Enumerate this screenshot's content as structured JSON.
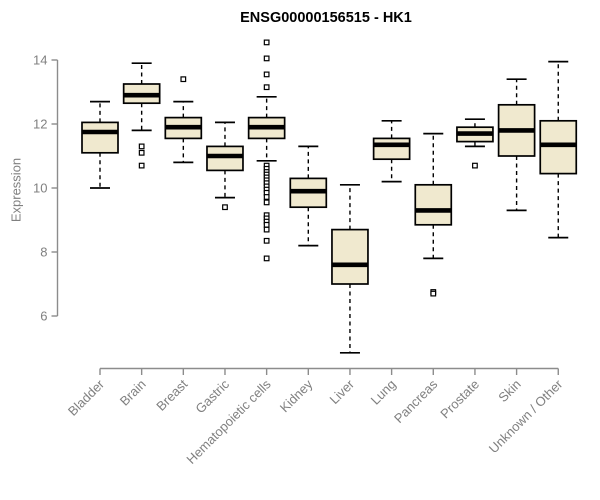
{
  "title": "ENSG00000156515 - HK1",
  "chart_data": {
    "type": "boxplot",
    "title": "ENSG00000156515 - HK1",
    "ylabel": "Expression",
    "xlabel": "",
    "yticks": [
      6,
      8,
      10,
      12,
      14
    ],
    "ylim": [
      4.3,
      14.8
    ],
    "grid": false,
    "legend": false,
    "categories": [
      "Bladder",
      "Brain",
      "Breast",
      "Gastric",
      "Hematopoietic cells",
      "Kidney",
      "Liver",
      "Lung",
      "Pancreas",
      "Prostate",
      "Skin",
      "Unknown / Other"
    ],
    "boxes": [
      {
        "category": "Bladder",
        "whisker_low": 10.0,
        "q1": 11.1,
        "median": 11.75,
        "q3": 12.05,
        "whisker_high": 12.7,
        "outliers": []
      },
      {
        "category": "Brain",
        "whisker_low": 11.8,
        "q1": 12.65,
        "median": 12.9,
        "q3": 13.25,
        "whisker_high": 13.9,
        "outliers": [
          11.3,
          11.1,
          10.7
        ]
      },
      {
        "category": "Breast",
        "whisker_low": 10.8,
        "q1": 11.55,
        "median": 11.9,
        "q3": 12.2,
        "whisker_high": 12.7,
        "outliers": [
          13.4
        ]
      },
      {
        "category": "Gastric",
        "whisker_low": 9.7,
        "q1": 10.55,
        "median": 11.0,
        "q3": 11.3,
        "whisker_high": 12.05,
        "outliers": [
          9.4
        ]
      },
      {
        "category": "Hematopoietic cells",
        "whisker_low": 10.85,
        "q1": 11.55,
        "median": 11.9,
        "q3": 12.2,
        "whisker_high": 12.85,
        "outliers": [
          14.55,
          14.05,
          13.55,
          13.15,
          10.7,
          10.6,
          10.5,
          10.42,
          10.33,
          10.24,
          10.15,
          10.05,
          9.95,
          9.85,
          9.72,
          9.55,
          9.15,
          9.05,
          8.95,
          8.85,
          8.7,
          8.35,
          7.8
        ]
      },
      {
        "category": "Kidney",
        "whisker_low": 8.2,
        "q1": 9.4,
        "median": 9.9,
        "q3": 10.3,
        "whisker_high": 11.3,
        "outliers": []
      },
      {
        "category": "Liver",
        "whisker_low": 4.85,
        "q1": 7.0,
        "median": 7.6,
        "q3": 8.7,
        "whisker_high": 10.1,
        "outliers": []
      },
      {
        "category": "Lung",
        "whisker_low": 10.2,
        "q1": 10.9,
        "median": 11.35,
        "q3": 11.55,
        "whisker_high": 12.1,
        "outliers": []
      },
      {
        "category": "Pancreas",
        "whisker_low": 7.8,
        "q1": 8.85,
        "median": 9.3,
        "q3": 10.1,
        "whisker_high": 11.7,
        "outliers": [
          6.75,
          6.7
        ]
      },
      {
        "category": "Prostate",
        "whisker_low": 11.3,
        "q1": 11.45,
        "median": 11.7,
        "q3": 11.9,
        "whisker_high": 12.15,
        "outliers": [
          10.7
        ]
      },
      {
        "category": "Skin",
        "whisker_low": 9.3,
        "q1": 11.0,
        "median": 11.8,
        "q3": 12.6,
        "whisker_high": 13.4,
        "outliers": []
      },
      {
        "category": "Unknown / Other",
        "whisker_low": 8.45,
        "q1": 10.45,
        "median": 11.35,
        "q3": 12.1,
        "whisker_high": 13.95,
        "outliers": []
      }
    ],
    "colors": {
      "box_fill": "#F0E9CF",
      "box_border": "#000000",
      "median": "#000000",
      "whisker": "#000000",
      "outlier_fill": "#ffffff",
      "axis": "#8C8C8C",
      "tick_label": "#808080",
      "title": "#000000"
    }
  }
}
